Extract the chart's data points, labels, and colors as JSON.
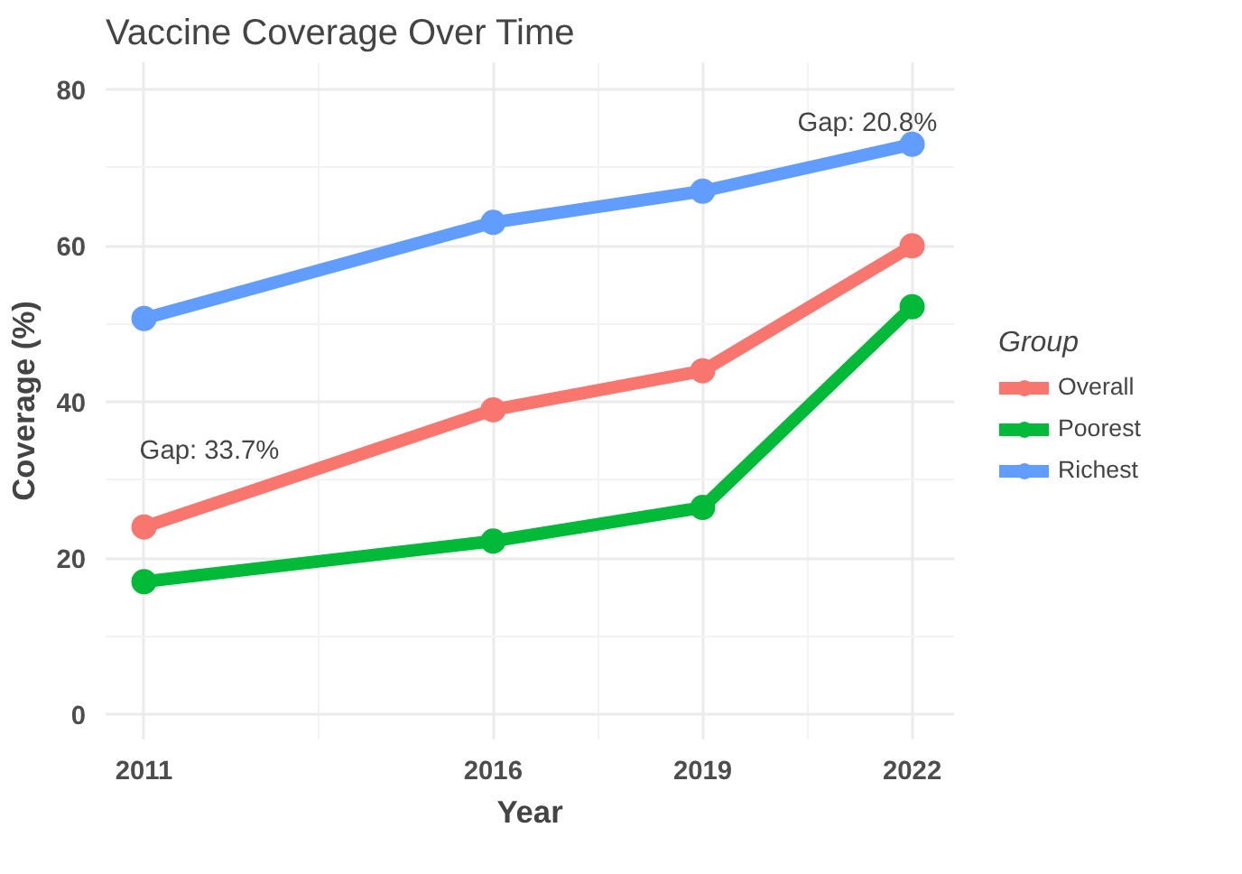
{
  "chart_data": {
    "type": "line",
    "title": "Vaccine Coverage Over Time",
    "xlabel": "Year",
    "ylabel": "Coverage (%)",
    "legend_title": "Group",
    "x": [
      2011,
      2016,
      2019,
      2022
    ],
    "series": [
      {
        "name": "Overall",
        "color": "#f8766d",
        "values": [
          24,
          39,
          44,
          60
        ]
      },
      {
        "name": "Poorest",
        "color": "#00ba38",
        "values": [
          17,
          22.2,
          26.5,
          52.2
        ]
      },
      {
        "name": "Richest",
        "color": "#619cff",
        "values": [
          50.7,
          63,
          67,
          73
        ]
      }
    ],
    "xlim": [
      2010.45,
      2022.6
    ],
    "xticks": [
      2011,
      2016,
      2019,
      2022
    ],
    "ylim": [
      -3.2,
      83.5
    ],
    "yticks": [
      0,
      20,
      40,
      60,
      80
    ],
    "annotations": [
      "Gap: 33.7%",
      "Gap: 20.8%"
    ],
    "grid": true,
    "legend": "right",
    "marker": "circle",
    "line_style": "solid"
  }
}
